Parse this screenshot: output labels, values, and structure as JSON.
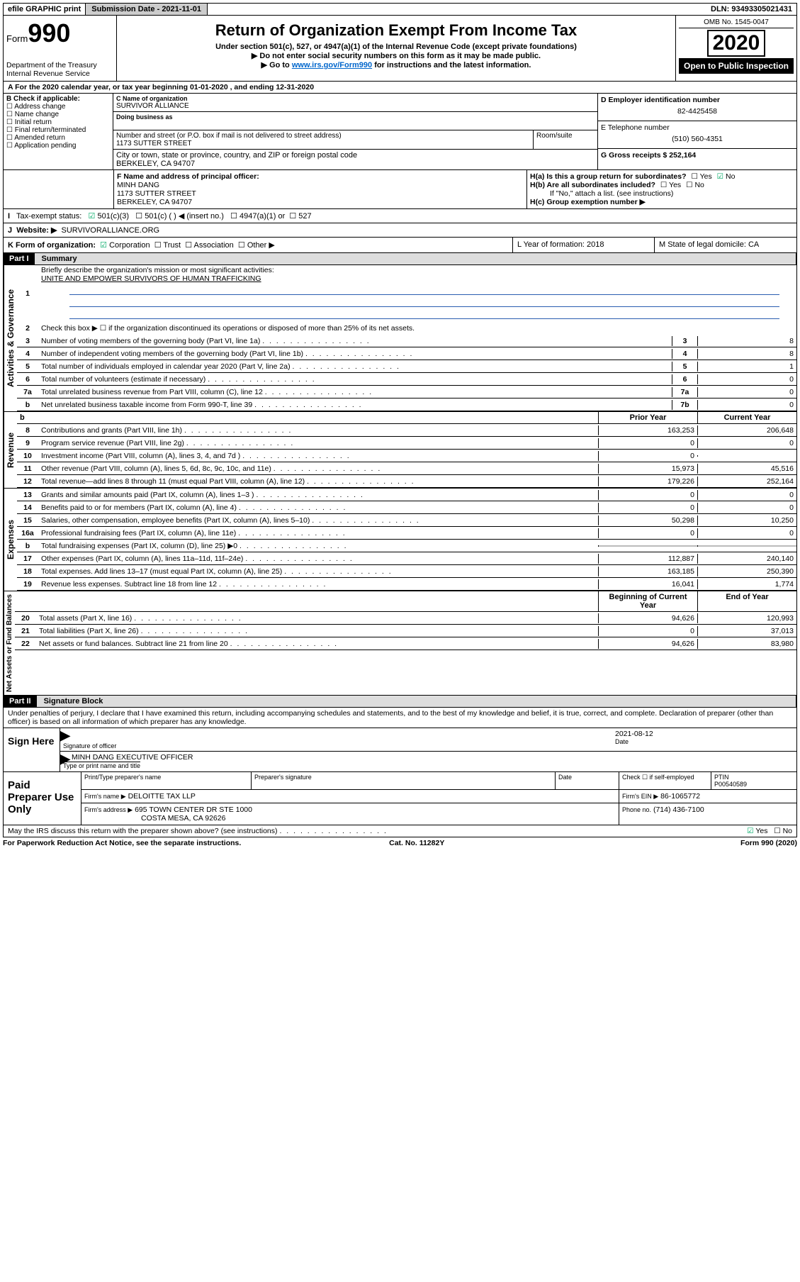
{
  "topbar": {
    "efile": "efile GRAPHIC print",
    "subdate_label": "Submission Date - 2021-11-01",
    "dln": "DLN: 93493305021431"
  },
  "header": {
    "form_prefix": "Form",
    "form_number": "990",
    "dept": "Department of the Treasury",
    "irs": "Internal Revenue Service",
    "title": "Return of Organization Exempt From Income Tax",
    "subtitle": "Under section 501(c), 527, or 4947(a)(1) of the Internal Revenue Code (except private foundations)",
    "note1": "Do not enter social security numbers on this form as it may be made public.",
    "note2_prefix": "Go to ",
    "note2_link": "www.irs.gov/Form990",
    "note2_suffix": " for instructions and the latest information.",
    "omb": "OMB No. 1545-0047",
    "year": "2020",
    "open_public": "Open to Public Inspection"
  },
  "rowA": "A For the 2020 calendar year, or tax year beginning 01-01-2020    , and ending 12-31-2020",
  "colB": {
    "title": "B Check if applicable:",
    "items": [
      "Address change",
      "Name change",
      "Initial return",
      "Final return/terminated",
      "Amended return",
      "Application pending"
    ]
  },
  "colC": {
    "name_label": "C Name of organization",
    "org_name": "SURVIVOR ALLIANCE",
    "dba_label": "Doing business as",
    "addr_label": "Number and street (or P.O. box if mail is not delivered to street address)",
    "room_label": "Room/suite",
    "addr": "1173 SUTTER STREET",
    "city_label": "City or town, state or province, country, and ZIP or foreign postal code",
    "city": "BERKELEY, CA  94707"
  },
  "colD": {
    "ein_label": "D Employer identification number",
    "ein": "82-4425458",
    "phone_label": "E Telephone number",
    "phone": "(510) 560-4351",
    "gross_label": "G Gross receipts $ 252,164"
  },
  "blockF": {
    "f_label": "F  Name and address of principal officer:",
    "f_name": "MINH DANG",
    "f_addr1": "1173 SUTTER STREET",
    "f_addr2": "BERKELEY, CA  94707",
    "ha_label": "H(a)  Is this a group return for subordinates?",
    "hb_label": "H(b)  Are all subordinates included?",
    "hb_note": "If \"No,\" attach a list. (see instructions)",
    "hc_label": "H(c)  Group exemption number ▶",
    "yes": "Yes",
    "no": "No"
  },
  "rowI": {
    "label": "I",
    "text": "Tax-exempt status:",
    "opts": [
      "501(c)(3)",
      "501(c) (  ) ◀ (insert no.)",
      "4947(a)(1) or",
      "527"
    ]
  },
  "rowJ": {
    "label": "J",
    "text": "Website: ▶",
    "val": "SURVIVORALLIANCE.ORG"
  },
  "rowK": {
    "label": "K Form of organization:",
    "opts": [
      "Corporation",
      "Trust",
      "Association",
      "Other ▶"
    ],
    "L": "L Year of formation: 2018",
    "M": "M State of legal domicile: CA"
  },
  "part1": {
    "hdr": "Part I",
    "title": "Summary",
    "q1": "Briefly describe the organization's mission or most significant activities:",
    "q1val": "UNITE AND EMPOWER SURVIVORS OF HUMAN TRAFFICKING",
    "q2": "Check this box ▶ ☐  if the organization discontinued its operations or disposed of more than 25% of its net assets.",
    "lines_gov": [
      {
        "n": "3",
        "d": "Number of voting members of the governing body (Part VI, line 1a)",
        "k": "3",
        "v": "8"
      },
      {
        "n": "4",
        "d": "Number of independent voting members of the governing body (Part VI, line 1b)",
        "k": "4",
        "v": "8"
      },
      {
        "n": "5",
        "d": "Total number of individuals employed in calendar year 2020 (Part V, line 2a)",
        "k": "5",
        "v": "1"
      },
      {
        "n": "6",
        "d": "Total number of volunteers (estimate if necessary)",
        "k": "6",
        "v": "0"
      },
      {
        "n": "7a",
        "d": "Total unrelated business revenue from Part VIII, column (C), line 12",
        "k": "7a",
        "v": "0"
      },
      {
        "n": "b",
        "d": "Net unrelated business taxable income from Form 990-T, line 39",
        "k": "7b",
        "v": "0"
      }
    ],
    "col_hdr_b": "b",
    "col_prior": "Prior Year",
    "col_curr": "Current Year",
    "lines_rev": [
      {
        "n": "8",
        "d": "Contributions and grants (Part VIII, line 1h)",
        "p": "163,253",
        "c": "206,648"
      },
      {
        "n": "9",
        "d": "Program service revenue (Part VIII, line 2g)",
        "p": "0",
        "c": "0"
      },
      {
        "n": "10",
        "d": "Investment income (Part VIII, column (A), lines 3, 4, and 7d )",
        "p": "0",
        "c": ""
      },
      {
        "n": "11",
        "d": "Other revenue (Part VIII, column (A), lines 5, 6d, 8c, 9c, 10c, and 11e)",
        "p": "15,973",
        "c": "45,516"
      },
      {
        "n": "12",
        "d": "Total revenue—add lines 8 through 11 (must equal Part VIII, column (A), line 12)",
        "p": "179,226",
        "c": "252,164"
      }
    ],
    "lines_exp": [
      {
        "n": "13",
        "d": "Grants and similar amounts paid (Part IX, column (A), lines 1–3 )",
        "p": "0",
        "c": "0"
      },
      {
        "n": "14",
        "d": "Benefits paid to or for members (Part IX, column (A), line 4)",
        "p": "0",
        "c": "0"
      },
      {
        "n": "15",
        "d": "Salaries, other compensation, employee benefits (Part IX, column (A), lines 5–10)",
        "p": "50,298",
        "c": "10,250"
      },
      {
        "n": "16a",
        "d": "Professional fundraising fees (Part IX, column (A), line 11e)",
        "p": "0",
        "c": "0"
      },
      {
        "n": "b",
        "d": "Total fundraising expenses (Part IX, column (D), line 25) ▶0",
        "p": "GRAY",
        "c": "GRAY"
      },
      {
        "n": "17",
        "d": "Other expenses (Part IX, column (A), lines 11a–11d, 11f–24e)",
        "p": "112,887",
        "c": "240,140"
      },
      {
        "n": "18",
        "d": "Total expenses. Add lines 13–17 (must equal Part IX, column (A), line 25)",
        "p": "163,185",
        "c": "250,390"
      },
      {
        "n": "19",
        "d": "Revenue less expenses. Subtract line 18 from line 12",
        "p": "16,041",
        "c": "1,774"
      }
    ],
    "col_begin": "Beginning of Current Year",
    "col_end": "End of Year",
    "lines_net": [
      {
        "n": "20",
        "d": "Total assets (Part X, line 16)",
        "p": "94,626",
        "c": "120,993"
      },
      {
        "n": "21",
        "d": "Total liabilities (Part X, line 26)",
        "p": "0",
        "c": "37,013"
      },
      {
        "n": "22",
        "d": "Net assets or fund balances. Subtract line 21 from line 20",
        "p": "94,626",
        "c": "83,980"
      }
    ],
    "vlabels": {
      "gov": "Activities & Governance",
      "rev": "Revenue",
      "exp": "Expenses",
      "net": "Net Assets or Fund Balances"
    }
  },
  "part2": {
    "hdr": "Part II",
    "title": "Signature Block",
    "penalty": "Under penalties of perjury, I declare that I have examined this return, including accompanying schedules and statements, and to the best of my knowledge and belief, it is true, correct, and complete. Declaration of preparer (other than officer) is based on all information of which preparer has any knowledge.",
    "sign_here": "Sign Here",
    "sig_officer": "Signature of officer",
    "sig_date_lbl": "Date",
    "sig_date": "2021-08-12",
    "sig_name": "MINH DANG EXECUTIVE OFFICER",
    "sig_name_lbl": "Type or print name and title",
    "paid": "Paid Preparer Use Only",
    "pp_name": "Print/Type preparer's name",
    "pp_sig": "Preparer's signature",
    "pp_date": "Date",
    "pp_self": "Check ☐ if self-employed",
    "pp_ptin_lbl": "PTIN",
    "pp_ptin": "P00540589",
    "firm_name_lbl": "Firm's name    ▶",
    "firm_name": "DELOITTE TAX LLP",
    "firm_ein_lbl": "Firm's EIN ▶",
    "firm_ein": "86-1065772",
    "firm_addr_lbl": "Firm's address ▶",
    "firm_addr1": "695 TOWN CENTER DR STE 1000",
    "firm_addr2": "COSTA MESA, CA  92626",
    "firm_phone_lbl": "Phone no.",
    "firm_phone": "(714) 436-7100",
    "discuss": "May the IRS discuss this return with the preparer shown above? (see instructions)"
  },
  "footer": {
    "left": "For Paperwork Reduction Act Notice, see the separate instructions.",
    "mid": "Cat. No. 11282Y",
    "right": "Form 990 (2020)"
  }
}
